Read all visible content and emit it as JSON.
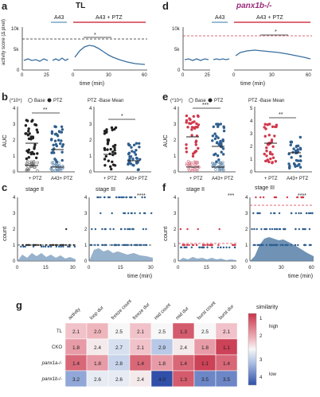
{
  "panels": {
    "a": {
      "letter": "a",
      "genotype": "TL",
      "label_a43": "A43",
      "label_a43_ptz": "A43 + PTZ",
      "sig": "*",
      "ylabel": "activity score (Δ pixel)",
      "xlabel": "time (min)",
      "yticks": [
        "10k",
        "5k",
        "0"
      ],
      "xticks_left": [
        "0",
        "25"
      ],
      "xticks_right": [
        "0",
        "30",
        "60"
      ]
    },
    "d": {
      "letter": "d",
      "genotype": "panx1b-/-",
      "label_a43": "A43",
      "label_a43_ptz": "A43 + PTZ",
      "sig": "*",
      "xlabel": "time (min)",
      "yticks": [
        "10k",
        "5k",
        "0"
      ],
      "xticks_left": [
        "0",
        "25"
      ],
      "xticks_right": [
        "0",
        "30",
        "60"
      ]
    },
    "b": {
      "letter": "b",
      "exp": "(*10⁴)",
      "legend_base": "Base",
      "legend_ptz": "PTZ",
      "ylabel": "AUC",
      "title_right": "PTZ -Base Mean",
      "sig_left": "**",
      "sig_right": "*",
      "yticks_left": [
        "4",
        "3",
        "2",
        "1",
        "0"
      ],
      "yticks_right": [
        "4",
        "3",
        "2",
        "1",
        "0"
      ],
      "cat1": "+ PTZ",
      "cat2": "A43+ PTZ"
    },
    "e": {
      "letter": "e",
      "exp": "(*10⁴)",
      "legend_base": "Base",
      "legend_ptz": "PTZ",
      "ylabel": "AUC",
      "title_right": "PTZ -Base Mean",
      "sig_left": "***",
      "sig_right": "**",
      "yticks_left": [
        "4",
        "3",
        "2",
        "1",
        "0"
      ],
      "yticks_right": [
        "5",
        "4",
        "3",
        "2",
        "1",
        "0"
      ],
      "cat1": "+ PTZ",
      "cat2": "A43+ PTZ"
    },
    "c": {
      "letter": "c",
      "stage2": "stage II",
      "stage3": "stage III",
      "sig3": "****",
      "ylabel": "count",
      "xlabel": "time (min)",
      "yticks": [
        "4",
        "3",
        "2",
        "1",
        "0"
      ],
      "xticks2": [
        "0",
        "15",
        "30"
      ],
      "xticks3": [
        "0",
        "15",
        "30"
      ]
    },
    "f": {
      "letter": "f",
      "stage2": "stage II",
      "stage3": "stage III",
      "sig2": "***",
      "sig3": "****",
      "ylabel": "count",
      "xlabel": "time (min)",
      "yticks": [
        "4",
        "3",
        "2",
        "1",
        "0"
      ],
      "xticks2": [
        "0",
        "15",
        "30"
      ],
      "xticks3": [
        "0",
        "30",
        "60"
      ]
    },
    "g": {
      "letter": "g",
      "columns": [
        "activity",
        "loop dur",
        "freeze count",
        "freeze dur",
        "mid count",
        "mid dur",
        "burst count",
        "burst dur"
      ],
      "rows": [
        {
          "label": "TL",
          "values": [
            "2.1",
            "2.0",
            "2.5",
            "2.1",
            "2.5",
            "1.3",
            "2.5",
            "2.1"
          ]
        },
        {
          "label": "CKO",
          "values": [
            "1.8",
            "2.4",
            "2.7",
            "2.1",
            "2.9",
            "2.4",
            "1.8",
            "1.1"
          ]
        },
        {
          "label": "panx1a-/-",
          "values": [
            "1.4",
            "1.8",
            "2.8",
            "1.4",
            "1.8",
            "1.4",
            "1.1",
            "1.4"
          ]
        },
        {
          "label": "panx1b-/-",
          "values": [
            "3.2",
            "2.6",
            "2.6",
            "2.4",
            "4.0",
            "1.3",
            "3.5",
            "3.5"
          ]
        }
      ],
      "colorbar_title": "similarity",
      "colorbar_ticks": [
        "1",
        "2",
        "3",
        "4"
      ],
      "colorbar_high": "high",
      "colorbar_low": "low"
    }
  },
  "colors": {
    "red": "#d1384b",
    "blue": "#2f5f8f",
    "trace": "#3a6fa0",
    "black": "#222222"
  }
}
